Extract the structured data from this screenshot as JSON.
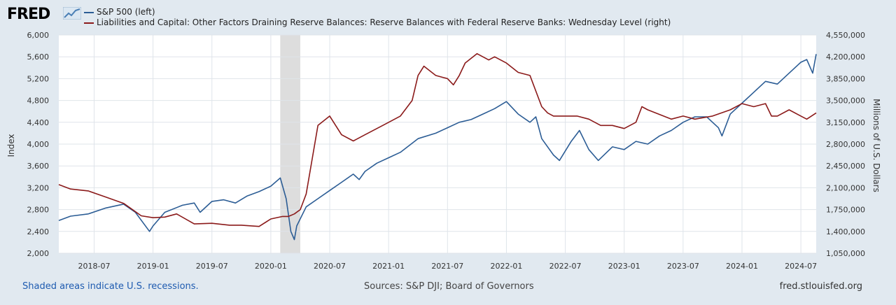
{
  "brand": {
    "name": "FRED",
    "icon": "trend-line-icon"
  },
  "legend": {
    "series1": "S&P 500 (left)",
    "series2": "Liabilities and Capital: Other Factors Draining Reserve Balances: Reserve Balances with Federal Reserve Banks: Wednesday Level (right)"
  },
  "footer": {
    "note": "Shaded areas indicate U.S. recessions.",
    "sources": "Sources: S&P DJI; Board of Governors",
    "site": "fred.stlouisfed.org"
  },
  "colors": {
    "sp500": "#2c5d95",
    "reserves": "#8b1a1a",
    "recession": "#dddddd",
    "plot_bg": "#ffffff",
    "grid": "#dfe4ea"
  },
  "chart_data": {
    "type": "line",
    "title": "",
    "xlabel": "",
    "ylabel_left": "Index",
    "ylabel_right": "Millions of U.S. Dollars",
    "x_ticks": [
      "2018-07",
      "2019-01",
      "2019-07",
      "2020-01",
      "2020-07",
      "2021-01",
      "2021-07",
      "2022-01",
      "2022-07",
      "2023-01",
      "2023-07",
      "2024-01",
      "2024-07"
    ],
    "x_range": [
      2018.2,
      2024.63
    ],
    "y_left_range": [
      2000,
      6000
    ],
    "y_left_ticks": [
      "2,000",
      "2,400",
      "2,800",
      "3,200",
      "3,600",
      "4,000",
      "4,400",
      "4,800",
      "5,200",
      "5,600",
      "6,000"
    ],
    "y_right_range": [
      1050000,
      4550000
    ],
    "y_right_ticks": [
      "1,050,000",
      "1,400,000",
      "1,750,000",
      "2,100,000",
      "2,450,000",
      "2,800,000",
      "3,150,000",
      "3,500,000",
      "3,850,000",
      "4,200,000",
      "4,550,000"
    ],
    "recessions": [
      [
        2020.08,
        2020.25
      ]
    ],
    "series": [
      {
        "name": "S&P 500 (left)",
        "axis": "left",
        "x": [
          2018.2,
          2018.3,
          2018.45,
          2018.6,
          2018.75,
          2018.85,
          2018.97,
          2019.0,
          2019.1,
          2019.25,
          2019.35,
          2019.4,
          2019.5,
          2019.6,
          2019.7,
          2019.8,
          2019.9,
          2020.0,
          2020.08,
          2020.13,
          2020.17,
          2020.2,
          2020.22,
          2020.3,
          2020.4,
          2020.5,
          2020.6,
          2020.7,
          2020.75,
          2020.8,
          2020.9,
          2021.0,
          2021.1,
          2021.25,
          2021.4,
          2021.5,
          2021.6,
          2021.7,
          2021.8,
          2021.9,
          2022.0,
          2022.1,
          2022.2,
          2022.25,
          2022.3,
          2022.4,
          2022.45,
          2022.55,
          2022.62,
          2022.7,
          2022.78,
          2022.9,
          2023.0,
          2023.1,
          2023.2,
          2023.3,
          2023.4,
          2023.5,
          2023.6,
          2023.7,
          2023.8,
          2023.83,
          2023.9,
          2024.0,
          2024.1,
          2024.2,
          2024.3,
          2024.4,
          2024.5,
          2024.55,
          2024.6,
          2024.63
        ],
        "values": [
          2600,
          2680,
          2720,
          2830,
          2900,
          2750,
          2400,
          2500,
          2750,
          2880,
          2920,
          2750,
          2950,
          2980,
          2920,
          3050,
          3130,
          3230,
          3380,
          3000,
          2400,
          2250,
          2500,
          2850,
          3000,
          3150,
          3300,
          3450,
          3350,
          3500,
          3650,
          3750,
          3850,
          4100,
          4200,
          4300,
          4400,
          4450,
          4550,
          4650,
          4780,
          4550,
          4400,
          4500,
          4100,
          3800,
          3700,
          4050,
          4250,
          3900,
          3700,
          3950,
          3900,
          4050,
          4000,
          4150,
          4250,
          4400,
          4500,
          4500,
          4300,
          4150,
          4550,
          4750,
          4950,
          5150,
          5100,
          5300,
          5500,
          5550,
          5300,
          5650
        ]
      },
      {
        "name": "Liabilities and Capital: Other Factors Draining Reserve Balances: Reserve Balances with Federal Reserve Banks: Wednesday Level (right)",
        "axis": "right",
        "x": [
          2018.2,
          2018.3,
          2018.45,
          2018.6,
          2018.75,
          2018.9,
          2019.0,
          2019.1,
          2019.2,
          2019.35,
          2019.5,
          2019.65,
          2019.75,
          2019.9,
          2020.0,
          2020.1,
          2020.15,
          2020.2,
          2020.25,
          2020.3,
          2020.4,
          2020.5,
          2020.6,
          2020.7,
          2020.8,
          2020.95,
          2021.1,
          2021.2,
          2021.25,
          2021.3,
          2021.4,
          2021.5,
          2021.55,
          2021.6,
          2021.65,
          2021.75,
          2021.85,
          2021.9,
          2022.0,
          2022.1,
          2022.2,
          2022.3,
          2022.35,
          2022.4,
          2022.6,
          2022.7,
          2022.8,
          2022.9,
          2023.0,
          2023.1,
          2023.15,
          2023.2,
          2023.4,
          2023.5,
          2023.6,
          2023.75,
          2023.9,
          2024.0,
          2024.1,
          2024.2,
          2024.25,
          2024.3,
          2024.4,
          2024.5,
          2024.55,
          2024.63
        ],
        "values": [
          2150000,
          2080000,
          2050000,
          1950000,
          1850000,
          1650000,
          1620000,
          1630000,
          1680000,
          1520000,
          1530000,
          1500000,
          1500000,
          1480000,
          1600000,
          1640000,
          1640000,
          1680000,
          1750000,
          2000000,
          3100000,
          3250000,
          2950000,
          2850000,
          2950000,
          3100000,
          3250000,
          3500000,
          3900000,
          4050000,
          3900000,
          3850000,
          3750000,
          3900000,
          4100000,
          4250000,
          4150000,
          4200000,
          4100000,
          3950000,
          3900000,
          3400000,
          3300000,
          3250000,
          3250000,
          3200000,
          3100000,
          3100000,
          3050000,
          3150000,
          3400000,
          3350000,
          3200000,
          3250000,
          3200000,
          3250000,
          3350000,
          3450000,
          3400000,
          3450000,
          3250000,
          3250000,
          3350000,
          3250000,
          3200000,
          3300000
        ]
      }
    ]
  }
}
